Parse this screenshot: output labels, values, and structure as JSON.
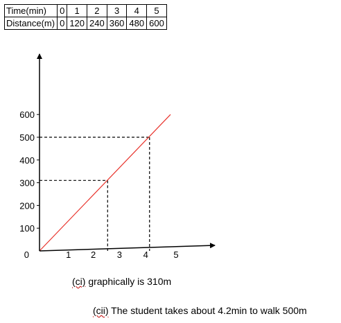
{
  "table": {
    "rows": [
      {
        "label": "Time(min)",
        "values": [
          "0",
          "1",
          "2",
          "3",
          "4",
          "5"
        ]
      },
      {
        "label": "Distance(m)",
        "values": [
          "0",
          "120",
          "240",
          "360",
          "480",
          "600"
        ]
      }
    ]
  },
  "chart_data": {
    "type": "line",
    "title": "",
    "xlabel": "",
    "ylabel": "",
    "x_ticks": [
      "1",
      "2",
      "3",
      "4",
      "5"
    ],
    "y_ticks": [
      "0",
      "100",
      "200",
      "300",
      "400",
      "500",
      "600"
    ],
    "xlim": [
      0,
      5
    ],
    "ylim": [
      0,
      600
    ],
    "series": [
      {
        "values": [
          [
            0,
            0
          ],
          [
            5,
            600
          ]
        ],
        "color": "#e8312a"
      }
    ],
    "guides": [
      {
        "x": 2.6,
        "y": 310
      },
      {
        "x": 4.2,
        "y": 500
      }
    ],
    "grid": false
  },
  "notes": {
    "ci_prefix": "(ci)",
    "ci_text": " graphically is 310m",
    "cii_prefix": "(cii)",
    "cii_text": " The student takes about 4.2min to walk 500m"
  }
}
